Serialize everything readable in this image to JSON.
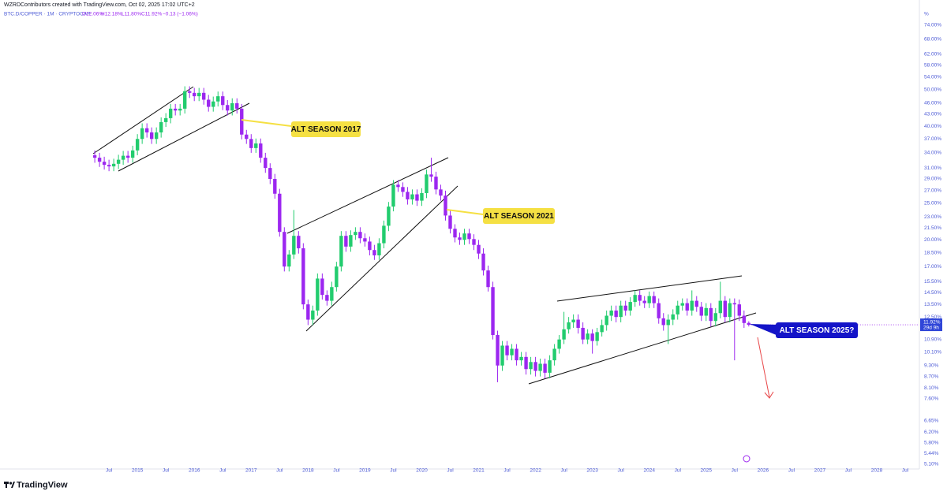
{
  "chart_data": {
    "type": "candlestick",
    "credit": "WZRDContributors created with TradingView.com, Oct 02, 2025 17:02 UTC+2",
    "symbol": "BTC.D/COPPER · 1M · CRYPTOCAP",
    "ohlc_labels": [
      "O12.06%",
      "H12.18%",
      "L11.80%",
      "C11.92%"
    ],
    "change_label": "−0.13 (−1.06%)",
    "y_unit": "%",
    "brand": "TradingView",
    "annotations": [
      "ALT SEASON 2017",
      "ALT SEASON 2021",
      "ALT SEASON 2025?"
    ],
    "current_price": {
      "value": 11.92,
      "label": "11.92%"
    },
    "countdown": "29d 9h",
    "log_scale": true,
    "grid": false,
    "up_color": "#22cc6e",
    "down_color": "#9c27f0",
    "x": [
      "2014-04",
      "2014-05",
      "2014-06",
      "2014-07",
      "2014-08",
      "2014-09",
      "2014-10",
      "2014-11",
      "2014-12",
      "2015-01",
      "2015-02",
      "2015-03",
      "2015-04",
      "2015-05",
      "2015-06",
      "2015-07",
      "2015-08",
      "2015-09",
      "2015-10",
      "2015-11",
      "2015-12",
      "2016-01",
      "2016-02",
      "2016-03",
      "2016-04",
      "2016-05",
      "2016-06",
      "2016-07",
      "2016-08",
      "2016-09",
      "2016-10",
      "2016-11",
      "2016-12",
      "2017-01",
      "2017-02",
      "2017-03",
      "2017-04",
      "2017-05",
      "2017-06",
      "2017-07",
      "2017-08",
      "2017-09",
      "2017-10",
      "2017-11",
      "2017-12",
      "2018-01",
      "2018-02",
      "2018-03",
      "2018-04",
      "2018-05",
      "2018-06",
      "2018-07",
      "2018-08",
      "2018-09",
      "2018-10",
      "2018-11",
      "2018-12",
      "2019-01",
      "2019-02",
      "2019-03",
      "2019-04",
      "2019-05",
      "2019-06",
      "2019-07",
      "2019-08",
      "2019-09",
      "2019-10",
      "2019-11",
      "2019-12",
      "2020-01",
      "2020-02",
      "2020-03",
      "2020-04",
      "2020-05",
      "2020-06",
      "2020-07",
      "2020-08",
      "2020-09",
      "2020-10",
      "2020-11",
      "2020-12",
      "2021-01",
      "2021-02",
      "2021-03",
      "2021-04",
      "2021-05",
      "2021-06",
      "2021-07",
      "2021-08",
      "2021-09",
      "2021-10",
      "2021-11",
      "2021-12",
      "2022-01",
      "2022-02",
      "2022-03",
      "2022-04",
      "2022-05",
      "2022-06",
      "2022-07",
      "2022-08",
      "2022-09",
      "2022-10",
      "2022-11",
      "2022-12",
      "2023-01",
      "2023-02",
      "2023-03",
      "2023-04",
      "2023-05",
      "2023-06",
      "2023-07",
      "2023-08",
      "2023-09",
      "2023-10",
      "2023-11",
      "2023-12",
      "2024-01",
      "2024-02",
      "2024-03",
      "2024-04",
      "2024-05",
      "2024-06",
      "2024-07",
      "2024-08",
      "2024-09",
      "2024-10",
      "2024-11",
      "2024-12",
      "2025-01",
      "2025-02",
      "2025-03",
      "2025-04",
      "2025-05",
      "2025-06",
      "2025-07",
      "2025-08",
      "2025-09",
      "2025-10"
    ],
    "open": [
      33.5,
      33.0,
      32.2,
      31.6,
      31.3,
      31.8,
      32.6,
      33.4,
      33.0,
      34.5,
      37.0,
      39.5,
      38.5,
      37.0,
      38.5,
      41.0,
      42.0,
      44.5,
      44.0,
      44.5,
      49.5,
      49.0,
      48.0,
      49.0,
      47.0,
      45.0,
      46.5,
      48.0,
      45.5,
      44.0,
      46.0,
      44.5,
      38.0,
      37.0,
      35.0,
      36.0,
      33.0,
      31.0,
      29.0,
      26.5,
      21.0,
      17.0,
      18.3,
      20.5,
      19.0,
      13.5,
      12.3,
      13.0,
      15.8,
      14.3,
      13.8,
      15.0,
      17.0,
      20.5,
      19.2,
      20.6,
      21.0,
      20.2,
      19.8,
      18.8,
      18.2,
      19.6,
      21.8,
      24.5,
      28.0,
      27.6,
      26.8,
      25.6,
      26.4,
      25.4,
      26.6,
      29.8,
      29.4,
      27.2,
      26.2,
      23.2,
      21.4,
      20.3,
      20.0,
      20.8,
      20.1,
      19.4,
      18.4,
      16.6,
      15.0,
      11.2,
      9.3,
      10.5,
      9.9,
      10.3,
      9.6,
      9.8,
      9.1,
      9.5,
      9.0,
      9.4,
      8.9,
      9.6,
      10.3,
      10.9,
      11.6,
      12.1,
      12.3,
      11.7,
      10.9,
      11.3,
      10.8,
      11.4,
      11.9,
      12.6,
      13.0,
      12.5,
      13.4,
      13.0,
      13.7,
      14.3,
      13.8,
      13.6,
      14.2,
      13.6,
      12.4,
      11.9,
      12.3,
      12.7,
      13.4,
      13.6,
      13.0,
      13.8,
      13.3,
      12.6,
      13.2,
      12.2,
      12.8,
      13.8,
      12.5,
      13.6,
      13.5,
      12.6,
      12.06
    ],
    "high": [
      34.5,
      34.0,
      33.2,
      32.6,
      32.8,
      33.6,
      34.4,
      34.4,
      35.5,
      38.1,
      40.7,
      40.7,
      39.7,
      39.7,
      42.2,
      43.3,
      45.8,
      45.8,
      45.8,
      51.0,
      51.0,
      50.5,
      50.5,
      50.5,
      48.4,
      47.9,
      49.4,
      49.4,
      46.9,
      47.4,
      47.4,
      45.8,
      39.1,
      38.1,
      37.1,
      37.1,
      34.0,
      31.9,
      29.9,
      27.3,
      21.6,
      18.8,
      24.0,
      21.1,
      19.6,
      13.9,
      13.4,
      16.3,
      16.3,
      14.7,
      15.5,
      17.5,
      21.1,
      21.1,
      21.2,
      21.6,
      21.6,
      20.8,
      20.4,
      19.4,
      20.2,
      22.5,
      25.2,
      28.8,
      28.8,
      28.4,
      27.6,
      27.2,
      27.2,
      27.4,
      30.7,
      33.0,
      30.3,
      28.0,
      27.0,
      23.9,
      22.0,
      20.9,
      21.4,
      21.4,
      20.7,
      20.0,
      19.0,
      17.1,
      15.5,
      11.5,
      10.8,
      10.8,
      10.6,
      10.6,
      10.1,
      10.1,
      9.8,
      9.8,
      9.7,
      9.7,
      9.9,
      10.6,
      11.2,
      12.9,
      12.5,
      12.7,
      12.7,
      12.1,
      11.6,
      11.6,
      11.7,
      12.3,
      13.0,
      13.4,
      13.4,
      13.8,
      13.8,
      14.1,
      14.7,
      14.7,
      14.2,
      14.6,
      14.6,
      14.0,
      12.8,
      12.7,
      13.1,
      13.8,
      14.0,
      14.0,
      14.7,
      14.2,
      13.7,
      13.6,
      13.6,
      13.2,
      15.5,
      14.2,
      14.0,
      14.0,
      13.9,
      13.0,
      12.18
    ],
    "low": [
      32.0,
      31.2,
      30.7,
      30.4,
      30.4,
      30.8,
      31.6,
      32.0,
      32.0,
      33.5,
      35.9,
      37.3,
      35.9,
      35.9,
      37.3,
      39.8,
      40.7,
      42.7,
      42.7,
      43.2,
      47.5,
      46.6,
      46.6,
      45.6,
      43.7,
      43.7,
      45.1,
      44.1,
      42.7,
      42.7,
      43.2,
      36.9,
      35.9,
      34.0,
      34.0,
      32.0,
      30.1,
      28.1,
      25.7,
      20.4,
      16.5,
      16.5,
      17.8,
      18.4,
      13.1,
      11.9,
      11.9,
      12.6,
      13.9,
      13.4,
      13.4,
      14.6,
      16.5,
      18.6,
      18.6,
      20.0,
      19.6,
      19.2,
      18.2,
      17.7,
      17.7,
      19.0,
      21.1,
      23.8,
      26.8,
      26.0,
      24.8,
      24.8,
      24.6,
      24.6,
      25.8,
      28.5,
      26.4,
      25.4,
      22.5,
      20.8,
      19.7,
      19.4,
      19.4,
      19.5,
      18.8,
      17.8,
      16.1,
      14.6,
      10.9,
      8.4,
      9.0,
      9.6,
      9.6,
      9.3,
      9.3,
      8.8,
      8.8,
      8.7,
      8.7,
      8.6,
      8.6,
      9.3,
      10.0,
      10.6,
      11.3,
      11.7,
      11.3,
      10.6,
      10.6,
      10.0,
      10.5,
      11.1,
      11.5,
      12.2,
      12.1,
      12.1,
      12.6,
      12.6,
      13.3,
      13.4,
      13.2,
      13.2,
      13.2,
      12.0,
      11.5,
      10.6,
      11.9,
      12.3,
      13.0,
      12.6,
      12.6,
      12.9,
      12.2,
      12.2,
      11.8,
      11.8,
      12.4,
      12.1,
      12.1,
      9.6,
      12.2,
      11.7,
      11.8
    ],
    "close": [
      33.0,
      32.2,
      31.6,
      31.3,
      31.8,
      32.6,
      33.4,
      33.0,
      34.5,
      37.0,
      39.5,
      38.5,
      37.0,
      38.5,
      41.0,
      42.0,
      44.5,
      44.0,
      44.5,
      49.5,
      49.0,
      48.0,
      49.0,
      47.0,
      45.0,
      46.5,
      48.0,
      45.5,
      44.0,
      46.0,
      44.5,
      38.0,
      37.0,
      35.0,
      36.0,
      33.0,
      31.0,
      29.0,
      26.5,
      21.0,
      17.0,
      18.3,
      20.5,
      19.0,
      13.5,
      12.3,
      13.0,
      15.8,
      14.3,
      13.8,
      15.0,
      17.0,
      20.5,
      19.2,
      20.6,
      21.0,
      20.2,
      19.8,
      18.8,
      18.2,
      19.6,
      21.8,
      24.5,
      28.0,
      27.6,
      26.8,
      25.6,
      26.4,
      25.4,
      26.6,
      29.8,
      29.4,
      27.2,
      26.2,
      23.2,
      21.4,
      20.3,
      20.0,
      20.8,
      20.1,
      19.4,
      18.4,
      16.6,
      15.0,
      11.2,
      9.3,
      10.5,
      9.9,
      10.3,
      9.6,
      9.8,
      9.1,
      9.5,
      9.0,
      9.4,
      8.9,
      9.6,
      10.3,
      10.9,
      11.6,
      12.1,
      12.3,
      11.7,
      10.9,
      11.3,
      10.8,
      11.4,
      11.9,
      12.6,
      13.0,
      12.5,
      13.4,
      13.0,
      13.7,
      14.3,
      13.8,
      13.6,
      14.2,
      13.6,
      12.4,
      11.9,
      12.3,
      12.7,
      13.4,
      13.6,
      13.0,
      13.8,
      13.3,
      12.6,
      13.2,
      12.2,
      12.8,
      13.8,
      12.5,
      13.6,
      13.5,
      12.6,
      12.05,
      11.92
    ],
    "xlim": [
      "2012-08",
      "2028-10"
    ],
    "xticks": [
      {
        "value": "2014-07",
        "label": "Jul"
      },
      {
        "value": "2015-01",
        "label": "2015"
      },
      {
        "value": "2015-07",
        "label": "Jul"
      },
      {
        "value": "2016-01",
        "label": "2016"
      },
      {
        "value": "2016-07",
        "label": "Jul"
      },
      {
        "value": "2017-01",
        "label": "2017"
      },
      {
        "value": "2017-07",
        "label": "Jul"
      },
      {
        "value": "2018-01",
        "label": "2018"
      },
      {
        "value": "2018-07",
        "label": "Jul"
      },
      {
        "value": "2019-01",
        "label": "2019"
      },
      {
        "value": "2019-07",
        "label": "Jul"
      },
      {
        "value": "2020-01",
        "label": "2020"
      },
      {
        "value": "2020-07",
        "label": "Jul"
      },
      {
        "value": "2021-01",
        "label": "2021"
      },
      {
        "value": "2021-07",
        "label": "Jul"
      },
      {
        "value": "2022-01",
        "label": "2022"
      },
      {
        "value": "2022-07",
        "label": "Jul"
      },
      {
        "value": "2023-01",
        "label": "2023"
      },
      {
        "value": "2023-07",
        "label": "Jul"
      },
      {
        "value": "2024-01",
        "label": "2024"
      },
      {
        "value": "2024-07",
        "label": "Jul"
      },
      {
        "value": "2025-01",
        "label": "2025"
      },
      {
        "value": "2025-07",
        "label": "Jul"
      },
      {
        "value": "2026-01",
        "label": "2026"
      },
      {
        "value": "2026-07",
        "label": "Jul"
      },
      {
        "value": "2027-01",
        "label": "2027"
      },
      {
        "value": "2027-07",
        "label": "Jul"
      },
      {
        "value": "2028-01",
        "label": "2028"
      },
      {
        "value": "2028-07",
        "label": "Jul"
      }
    ],
    "ylim": [
      4.95,
      86.3
    ],
    "yticks": [
      {
        "value": 74,
        "label": "74.00%"
      },
      {
        "value": 68,
        "label": "68.00%"
      },
      {
        "value": 62,
        "label": "62.00%"
      },
      {
        "value": 58,
        "label": "58.00%"
      },
      {
        "value": 54,
        "label": "54.00%"
      },
      {
        "value": 50,
        "label": "50.00%"
      },
      {
        "value": 46,
        "label": "46.00%"
      },
      {
        "value": 43,
        "label": "43.00%"
      },
      {
        "value": 40,
        "label": "40.00%"
      },
      {
        "value": 37,
        "label": "37.00%"
      },
      {
        "value": 34,
        "label": "34.00%"
      },
      {
        "value": 31,
        "label": "31.00%"
      },
      {
        "value": 29,
        "label": "29.00%"
      },
      {
        "value": 27,
        "label": "27.00%"
      },
      {
        "value": 25,
        "label": "25.00%"
      },
      {
        "value": 23,
        "label": "23.00%"
      },
      {
        "value": 21.5,
        "label": "21.50%"
      },
      {
        "value": 20,
        "label": "20.00%"
      },
      {
        "value": 18.5,
        "label": "18.50%"
      },
      {
        "value": 17,
        "label": "17.00%"
      },
      {
        "value": 15.5,
        "label": "15.50%"
      },
      {
        "value": 14.5,
        "label": "14.50%"
      },
      {
        "value": 13.5,
        "label": "13.50%"
      },
      {
        "value": 12.5,
        "label": "12.50%"
      },
      {
        "value": 10.9,
        "label": "10.90%"
      },
      {
        "value": 10.1,
        "label": "10.10%"
      },
      {
        "value": 9.3,
        "label": "9.30%"
      },
      {
        "value": 8.7,
        "label": "8.70%"
      },
      {
        "value": 8.1,
        "label": "8.10%"
      },
      {
        "value": 7.6,
        "label": "7.60%"
      },
      {
        "value": 6.65,
        "label": "6.65%"
      },
      {
        "value": 6.2,
        "label": "6.20%"
      },
      {
        "value": 5.8,
        "label": "5.80%"
      },
      {
        "value": 5.44,
        "label": "5.44%"
      },
      {
        "value": 5.1,
        "label": "5.10%"
      }
    ]
  }
}
